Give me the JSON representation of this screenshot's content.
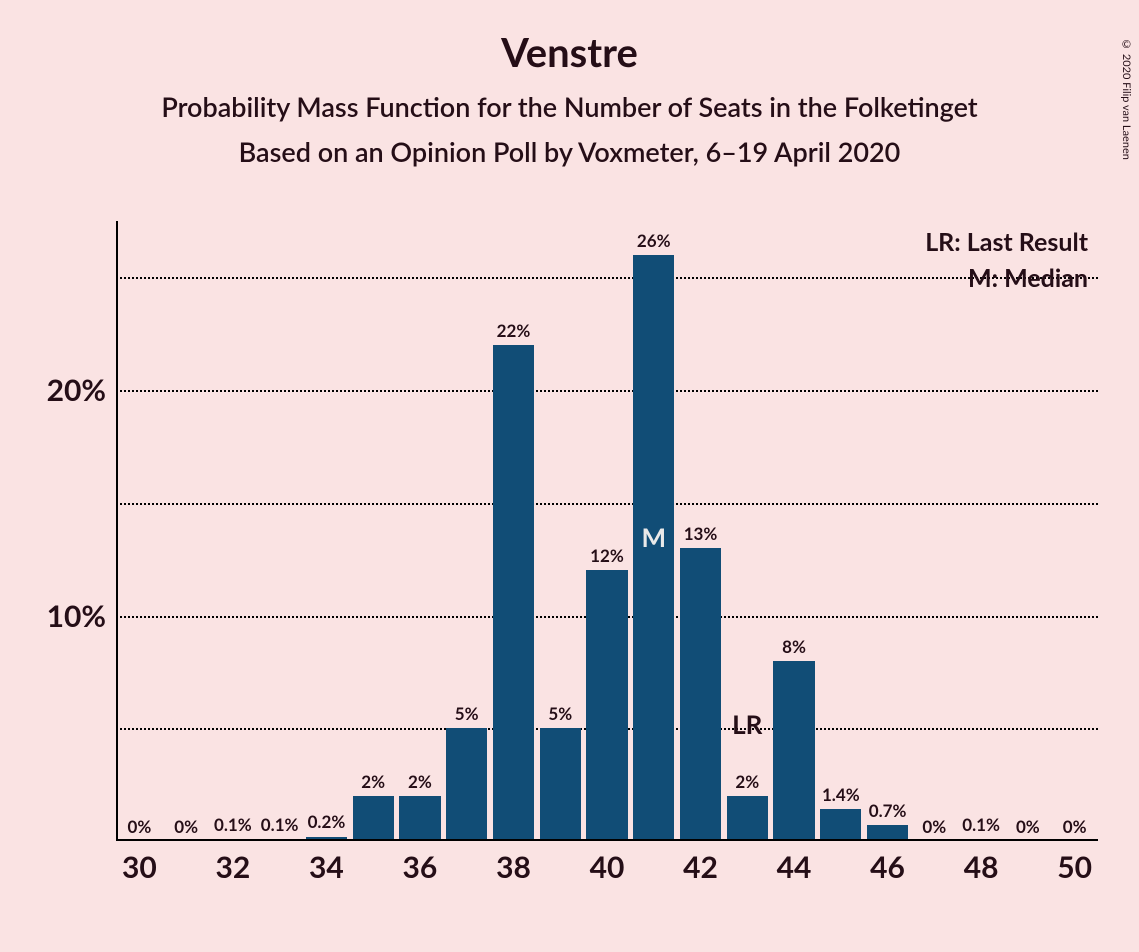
{
  "title": "Venstre",
  "subtitle1": "Probability Mass Function for the Number of Seats in the Folketinget",
  "subtitle2": "Based on an Opinion Poll by Voxmeter, 6–19 April 2020",
  "copyright": "© 2020 Filip van Laenen",
  "legend": {
    "lr": "LR: Last Result",
    "m": "M: Median"
  },
  "chart": {
    "type": "bar",
    "bar_color": "#114d76",
    "background_color": "#fae3e3",
    "text_color": "#250e17",
    "grid_style": "dotted",
    "bar_width_ratio": 0.88,
    "title_fontsize": 40,
    "subtitle_fontsize": 27,
    "axis_label_fontsize": 30,
    "bar_label_fontsize": 17,
    "legend_fontsize": 25,
    "x_range": [
      29.5,
      50.5
    ],
    "y_range": [
      0,
      27.5
    ],
    "y_ticks": [
      5,
      10,
      15,
      20,
      25
    ],
    "y_tick_labels": {
      "10": "10%",
      "20": "20%"
    },
    "x_ticks": [
      30,
      32,
      34,
      36,
      38,
      40,
      42,
      44,
      46,
      48,
      50
    ],
    "median_seat": 41,
    "median_label": "M",
    "median_color": "#e9e9e9",
    "lr_seat": 43,
    "lr_label": "LR",
    "lr_color": "#250e17",
    "bars": [
      {
        "seat": 30,
        "value": 0,
        "label": "0%"
      },
      {
        "seat": 31,
        "value": 0,
        "label": "0%"
      },
      {
        "seat": 32,
        "value": 0.1,
        "label": "0.1%"
      },
      {
        "seat": 33,
        "value": 0.1,
        "label": "0.1%"
      },
      {
        "seat": 34,
        "value": 0.2,
        "label": "0.2%"
      },
      {
        "seat": 35,
        "value": 2,
        "label": "2%"
      },
      {
        "seat": 36,
        "value": 2,
        "label": "2%"
      },
      {
        "seat": 37,
        "value": 5,
        "label": "5%"
      },
      {
        "seat": 38,
        "value": 22,
        "label": "22%"
      },
      {
        "seat": 39,
        "value": 5,
        "label": "5%"
      },
      {
        "seat": 40,
        "value": 12,
        "label": "12%"
      },
      {
        "seat": 41,
        "value": 26,
        "label": "26%"
      },
      {
        "seat": 42,
        "value": 13,
        "label": "13%"
      },
      {
        "seat": 43,
        "value": 2,
        "label": "2%"
      },
      {
        "seat": 44,
        "value": 8,
        "label": "8%"
      },
      {
        "seat": 45,
        "value": 1.4,
        "label": "1.4%"
      },
      {
        "seat": 46,
        "value": 0.7,
        "label": "0.7%"
      },
      {
        "seat": 47,
        "value": 0,
        "label": "0%"
      },
      {
        "seat": 48,
        "value": 0.1,
        "label": "0.1%"
      },
      {
        "seat": 49,
        "value": 0,
        "label": "0%"
      },
      {
        "seat": 50,
        "value": 0,
        "label": "0%"
      }
    ]
  }
}
